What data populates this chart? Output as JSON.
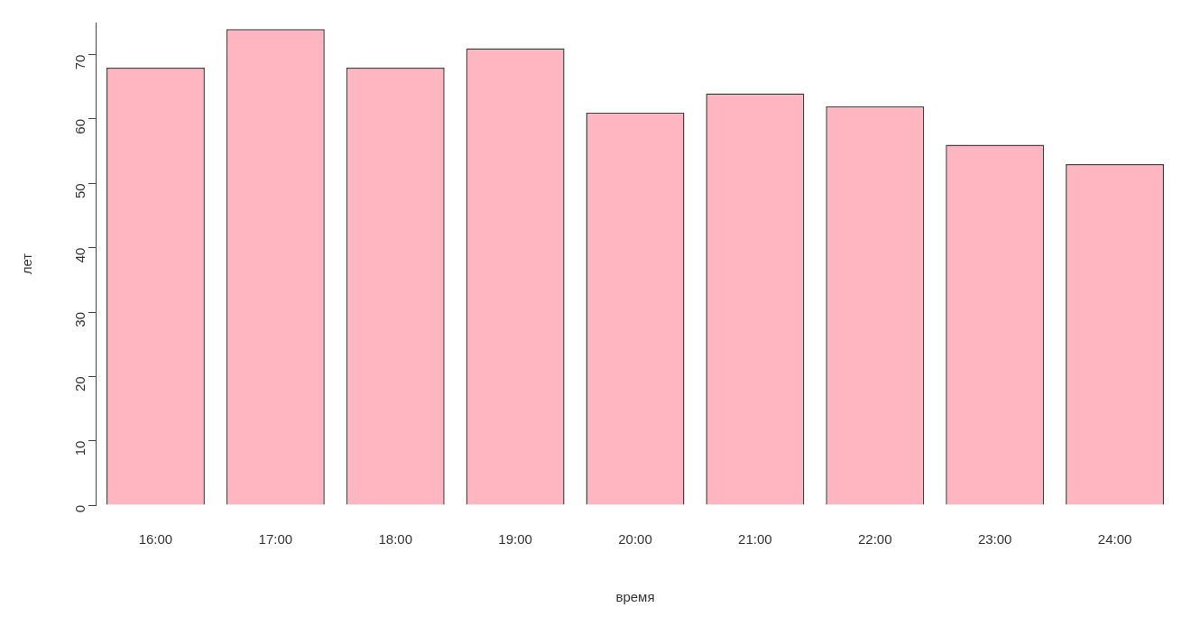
{
  "chart_data": {
    "type": "bar",
    "xlabel": "время",
    "ylabel": "лет",
    "categories": [
      "16:00",
      "17:00",
      "18:00",
      "19:00",
      "20:00",
      "21:00",
      "22:00",
      "23:00",
      "24:00"
    ],
    "values": [
      68,
      74,
      68,
      71,
      61,
      64,
      62,
      56,
      53
    ],
    "color": "#ffb6c1",
    "ylim": [
      0,
      75
    ],
    "yticks": [
      0,
      10,
      20,
      30,
      40,
      50,
      60,
      70
    ],
    "grid": false,
    "legend": false
  }
}
